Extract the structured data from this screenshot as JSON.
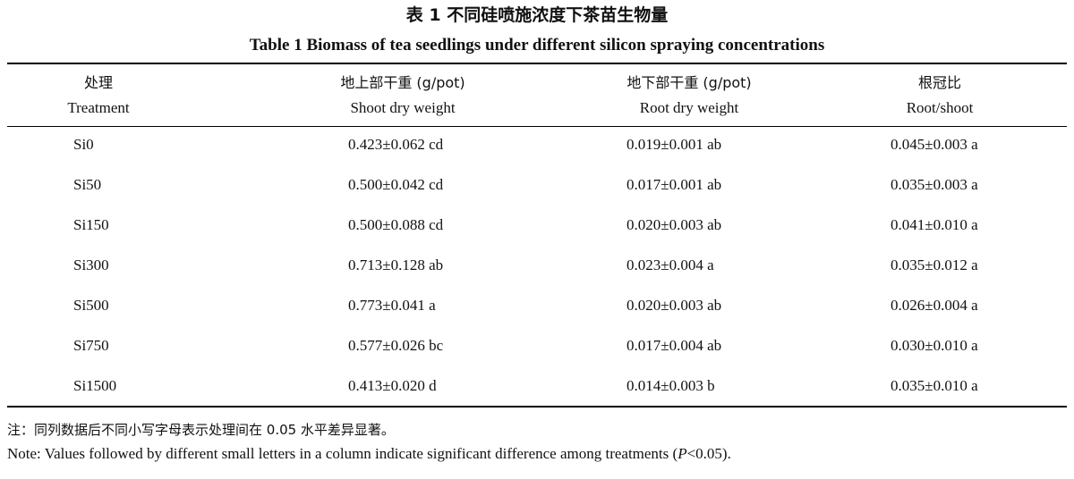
{
  "caption": {
    "cn": "表 1   不同硅喷施浓度下茶苗生物量",
    "en": "Table 1   Biomass of tea seedlings under different silicon spraying concentrations"
  },
  "table": {
    "headers": [
      {
        "cn": "处理",
        "en": "Treatment"
      },
      {
        "cn": "地上部干重 (g/pot)",
        "en": "Shoot dry weight"
      },
      {
        "cn": "地下部干重 (g/pot)",
        "en": "Root dry weight"
      },
      {
        "cn": "根冠比",
        "en": "Root/shoot"
      }
    ],
    "rows": [
      [
        "Si0",
        "0.423±0.062 cd",
        "0.019±0.001 ab",
        "0.045±0.003 a"
      ],
      [
        "Si50",
        "0.500±0.042 cd",
        "0.017±0.001 ab",
        "0.035±0.003 a"
      ],
      [
        "Si150",
        "0.500±0.088 cd",
        "0.020±0.003 ab",
        "0.041±0.010 a"
      ],
      [
        "Si300",
        "0.713±0.128 ab",
        "0.023±0.004 a",
        "0.035±0.012 a"
      ],
      [
        "Si500",
        "0.773±0.041 a",
        "0.020±0.003 ab",
        "0.026±0.004 a"
      ],
      [
        "Si750",
        "0.577±0.026 bc",
        "0.017±0.004 ab",
        "0.030±0.010 a"
      ],
      [
        "Si1500",
        "0.413±0.020 d",
        "0.014±0.003 b",
        "0.035±0.010 a"
      ]
    ]
  },
  "notes": {
    "cn": "注：同列数据后不同小写字母表示处理间在 0.05 水平差异显著。",
    "en_before": "Note: Values followed by different small letters in a column indicate significant difference among treatments (",
    "en_p": "P",
    "en_after": "<0.05)."
  }
}
